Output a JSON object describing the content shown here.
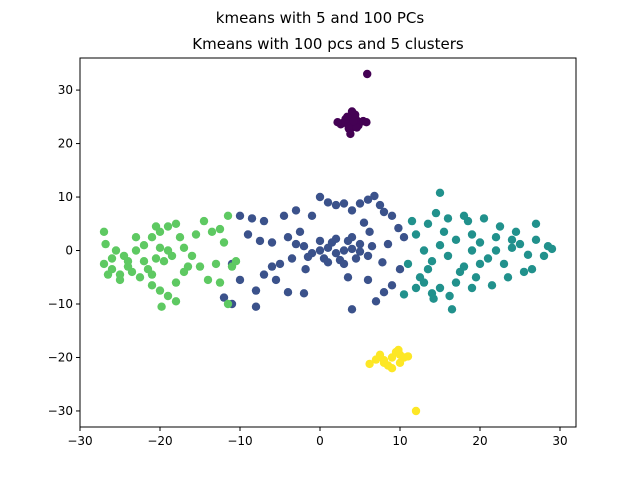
{
  "chart_data": {
    "type": "scatter",
    "suptitle": "kmeans with 5 and 100 PCs",
    "title": "Kmeans with 100 pcs and 5 clusters",
    "xlabel": "",
    "ylabel": "",
    "xlim": [
      -30,
      32
    ],
    "ylim": [
      -33,
      36
    ],
    "xticks": [
      -30,
      -20,
      -10,
      0,
      10,
      20,
      30
    ],
    "yticks": [
      -30,
      -20,
      -10,
      0,
      10,
      20,
      30
    ],
    "grid": false,
    "legend": "none",
    "series": [
      {
        "cluster": 0,
        "color": "#440154",
        "points": [
          [
            4,
            24
          ],
          [
            3.5,
            23.5
          ],
          [
            4.5,
            24.5
          ],
          [
            3,
            24
          ],
          [
            5,
            24
          ],
          [
            4,
            25
          ],
          [
            4,
            23
          ],
          [
            3.2,
            24.6
          ],
          [
            4.8,
            23.4
          ],
          [
            3.6,
            22.8
          ],
          [
            4.4,
            25.4
          ],
          [
            2.6,
            23.6
          ],
          [
            5.4,
            24.2
          ],
          [
            4,
            26
          ],
          [
            3.8,
            21.8
          ],
          [
            5.8,
            24
          ],
          [
            2.2,
            24
          ],
          [
            4.6,
            23
          ],
          [
            3.4,
            25
          ],
          [
            4.2,
            24.2
          ],
          [
            5.9,
            33
          ]
        ]
      },
      {
        "cluster": 1,
        "color": "#3b528b",
        "points": [
          [
            0,
            0
          ],
          [
            1,
            0.5
          ],
          [
            2,
            -0.5
          ],
          [
            3,
            0
          ],
          [
            4,
            0.3
          ],
          [
            5,
            -0.2
          ],
          [
            -1,
            -0.5
          ],
          [
            0.5,
            -1.5
          ],
          [
            1.5,
            1.5
          ],
          [
            2.5,
            -1.8
          ],
          [
            3.5,
            1.8
          ],
          [
            4.5,
            -1.5
          ],
          [
            -2,
            0.8
          ],
          [
            -1.5,
            -1.2
          ],
          [
            0,
            1.8
          ],
          [
            1,
            -2.2
          ],
          [
            2,
            2.2
          ],
          [
            3,
            -2.5
          ],
          [
            4,
            2.5
          ],
          [
            5,
            1.2
          ],
          [
            6,
            -1
          ],
          [
            6.5,
            0.8
          ],
          [
            -3,
            1.2
          ],
          [
            -3.5,
            -1.5
          ],
          [
            -4,
            2.5
          ],
          [
            -5,
            -2.5
          ],
          [
            -6,
            1.5
          ],
          [
            -7,
            -4.5
          ],
          [
            -7.5,
            1.8
          ],
          [
            -8,
            -7.5
          ],
          [
            -9,
            3
          ],
          [
            -10,
            -5.5
          ],
          [
            -11,
            -2.5
          ],
          [
            -10,
            6.5
          ],
          [
            -8.5,
            6
          ],
          [
            -7,
            5.5
          ],
          [
            -6,
            -3
          ],
          [
            -5.5,
            -5.5
          ],
          [
            -4.5,
            6.5
          ],
          [
            -3,
            7.5
          ],
          [
            -2,
            -8
          ],
          [
            -1,
            6.5
          ],
          [
            0,
            10
          ],
          [
            1,
            9
          ],
          [
            2,
            8.5
          ],
          [
            3,
            8.8
          ],
          [
            4,
            7.5
          ],
          [
            5,
            8.8
          ],
          [
            6,
            9.5
          ],
          [
            6.8,
            10.2
          ],
          [
            7.5,
            8.5
          ],
          [
            8,
            7.2
          ],
          [
            9,
            6.5
          ],
          [
            9.8,
            4.2
          ],
          [
            10.5,
            2.5
          ],
          [
            10,
            -3.5
          ],
          [
            9,
            -6.5
          ],
          [
            8,
            -7.8
          ],
          [
            7,
            -9.5
          ],
          [
            6,
            -5.5
          ],
          [
            4,
            -11
          ],
          [
            3.5,
            -5
          ],
          [
            -4,
            -7.8
          ],
          [
            -8,
            -10.5
          ],
          [
            -12,
            -8.8
          ],
          [
            -11,
            -10
          ],
          [
            7.8,
            -2.2
          ],
          [
            8.5,
            1.2
          ],
          [
            6.2,
            3.5
          ],
          [
            5.5,
            5.2
          ],
          [
            -2.5,
            3.5
          ],
          [
            -1.8,
            -3.5
          ]
        ]
      },
      {
        "cluster": 2,
        "color": "#21918c",
        "points": [
          [
            13,
            0
          ],
          [
            14,
            -2
          ],
          [
            15,
            1
          ],
          [
            16,
            -1
          ],
          [
            17,
            2
          ],
          [
            18,
            -3
          ],
          [
            19,
            0
          ],
          [
            20,
            1.5
          ],
          [
            21,
            -1.5
          ],
          [
            22,
            2.5
          ],
          [
            23,
            -2.5
          ],
          [
            24,
            0.5
          ],
          [
            25,
            1.2
          ],
          [
            26,
            -0.8
          ],
          [
            27,
            2
          ],
          [
            28,
            -1
          ],
          [
            29,
            0.3
          ],
          [
            12,
            3
          ],
          [
            11,
            -2.5
          ],
          [
            12.5,
            -5
          ],
          [
            13.5,
            5
          ],
          [
            14.5,
            7
          ],
          [
            15,
            10.8
          ],
          [
            16,
            6
          ],
          [
            17,
            -6
          ],
          [
            16.5,
            -11
          ],
          [
            15,
            -7
          ],
          [
            14,
            -8
          ],
          [
            13,
            -6
          ],
          [
            12,
            -7
          ],
          [
            18.5,
            5.5
          ],
          [
            19.5,
            -5
          ],
          [
            20.5,
            6
          ],
          [
            21.5,
            -6.5
          ],
          [
            22.5,
            4.5
          ],
          [
            23.5,
            -5
          ],
          [
            24.5,
            3.5
          ],
          [
            25.5,
            -4
          ],
          [
            26.5,
            -3.5
          ],
          [
            27,
            5
          ],
          [
            28.5,
            0.8
          ],
          [
            11.5,
            5.5
          ],
          [
            10.5,
            -8.2
          ],
          [
            13.5,
            -3.5
          ],
          [
            15.5,
            3.5
          ],
          [
            17.5,
            -4
          ],
          [
            19,
            3
          ],
          [
            20,
            -2.5
          ],
          [
            22,
            0
          ],
          [
            24,
            2
          ],
          [
            18,
            6.5
          ],
          [
            14.2,
            -9
          ],
          [
            16.2,
            -8.5
          ],
          [
            19,
            -7
          ]
        ]
      },
      {
        "cluster": 3,
        "color": "#5ec962",
        "points": [
          [
            -27,
            3.5
          ],
          [
            -26.8,
            1.2
          ],
          [
            -27,
            -2.5
          ],
          [
            -26,
            -3.5
          ],
          [
            -25,
            -4.5
          ],
          [
            -24,
            -2
          ],
          [
            -23,
            0
          ],
          [
            -22,
            1
          ],
          [
            -21,
            2.5
          ],
          [
            -20,
            3.5
          ],
          [
            -19,
            4.5
          ],
          [
            -18,
            5
          ],
          [
            -17.5,
            2.5
          ],
          [
            -18.5,
            -1
          ],
          [
            -19.5,
            -2
          ],
          [
            -20.5,
            -1.5
          ],
          [
            -21.5,
            -3.5
          ],
          [
            -22.5,
            -5
          ],
          [
            -23.5,
            -4
          ],
          [
            -24.5,
            -1
          ],
          [
            -25.5,
            0
          ],
          [
            -26.5,
            -4.5
          ],
          [
            -25,
            -5.5
          ],
          [
            -21,
            -6.5
          ],
          [
            -20,
            -7.5
          ],
          [
            -19,
            -8.5
          ],
          [
            -18,
            -9.5
          ],
          [
            -19.8,
            -10.5
          ],
          [
            -17,
            0.5
          ],
          [
            -16,
            -1
          ],
          [
            -15,
            -3
          ],
          [
            -14,
            -5.5
          ],
          [
            -13,
            -2.5
          ],
          [
            -12,
            1.5
          ],
          [
            -13.5,
            3.5
          ],
          [
            -14.5,
            5.5
          ],
          [
            -15.5,
            3
          ],
          [
            -12.5,
            -6
          ],
          [
            -11,
            -3
          ],
          [
            -11.5,
            -10
          ],
          [
            -11.5,
            6.5
          ],
          [
            -12.5,
            4
          ],
          [
            -10.5,
            -2
          ],
          [
            -16.5,
            -3
          ],
          [
            -22,
            -2
          ],
          [
            -20,
            0.5
          ],
          [
            -24,
            -3
          ],
          [
            -23,
            2.5
          ],
          [
            -19,
            0
          ],
          [
            -21,
            -4.5
          ],
          [
            -18,
            -6
          ],
          [
            -26,
            -1.5
          ],
          [
            -20.5,
            4.5
          ],
          [
            -17,
            -4
          ]
        ]
      },
      {
        "cluster": 4,
        "color": "#fde725",
        "points": [
          [
            9,
            -20
          ],
          [
            8,
            -20.5
          ],
          [
            10,
            -19.5
          ],
          [
            8.5,
            -21.5
          ],
          [
            9.5,
            -19
          ],
          [
            7.5,
            -19.5
          ],
          [
            10.5,
            -20
          ],
          [
            9,
            -22
          ],
          [
            8,
            -21
          ],
          [
            10,
            -21
          ],
          [
            6.2,
            -21.2
          ],
          [
            11,
            -19.8
          ],
          [
            9.8,
            -18.6
          ],
          [
            7,
            -20.4
          ],
          [
            12,
            -30
          ]
        ]
      }
    ]
  }
}
